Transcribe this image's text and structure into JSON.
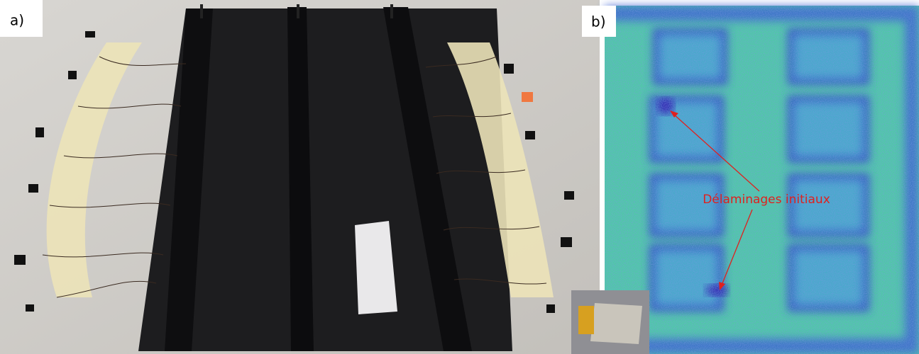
{
  "panels": [
    {
      "label": "a)"
    },
    {
      "label": "b)",
      "annotation": "Délaminages initiaux"
    }
  ]
}
